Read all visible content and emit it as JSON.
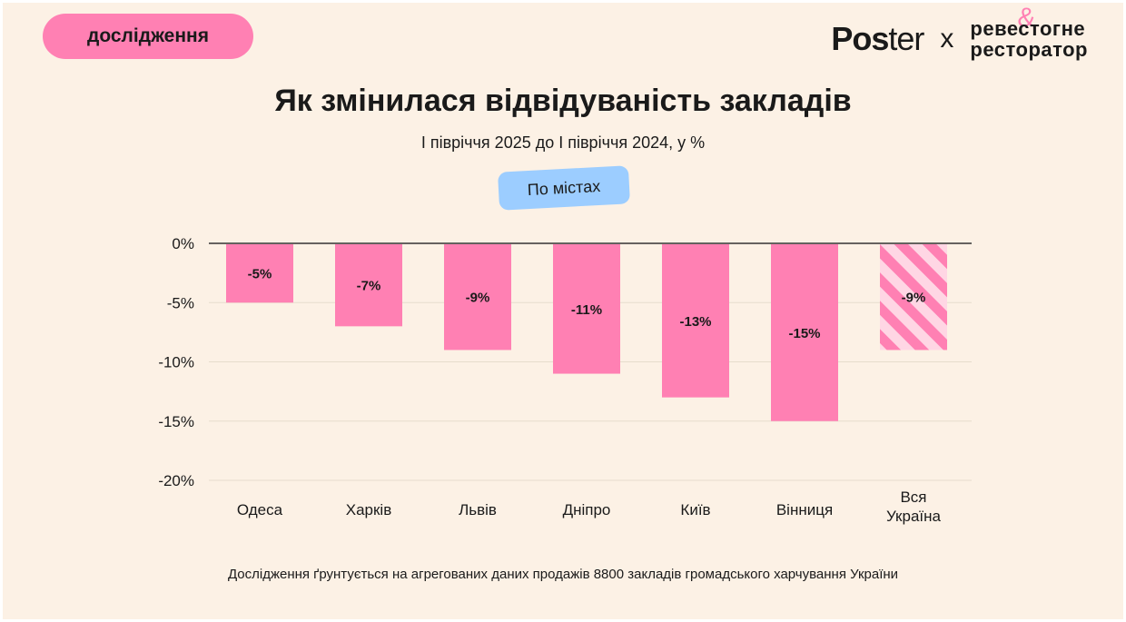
{
  "badge": "дослідження",
  "logos": {
    "poster_bold": "Pos",
    "poster_light": "ter",
    "separator": "x",
    "amp": "&",
    "brand_line1": "ревестогне",
    "brand_line2": "ресторатор"
  },
  "filter_label": "По містах",
  "footnote": "Дослідження ґрунтується на агрегованих даних продажів 8800 закладів громадського харчування України",
  "colors": {
    "bar": "#ff80b3",
    "bar_stripe_light": "#ffd6e4",
    "background": "#fcf1e5",
    "filter": "#9ccdff"
  },
  "chart_data": {
    "type": "bar",
    "title": "Як змінилася відвідуваність закладів",
    "subtitle": "І півріччя 2025 до І півріччя 2024, у %",
    "categories": [
      "Одеса",
      "Харків",
      "Львів",
      "Дніпро",
      "Київ",
      "Вінниця",
      "Вся Україна"
    ],
    "values": [
      -5,
      -7,
      -9,
      -11,
      -13,
      -15,
      -9
    ],
    "value_labels": [
      "-5%",
      "-7%",
      "-9%",
      "-11%",
      "-13%",
      "-15%",
      "-9%"
    ],
    "highlight_index": 6,
    "ylim": [
      -20,
      0
    ],
    "yticks": [
      0,
      -5,
      -10,
      -15,
      -20
    ],
    "ytick_labels": [
      "0%",
      "-5%",
      "-10%",
      "-15%",
      "-20%"
    ],
    "grid": true,
    "xlabel": "",
    "ylabel": ""
  }
}
